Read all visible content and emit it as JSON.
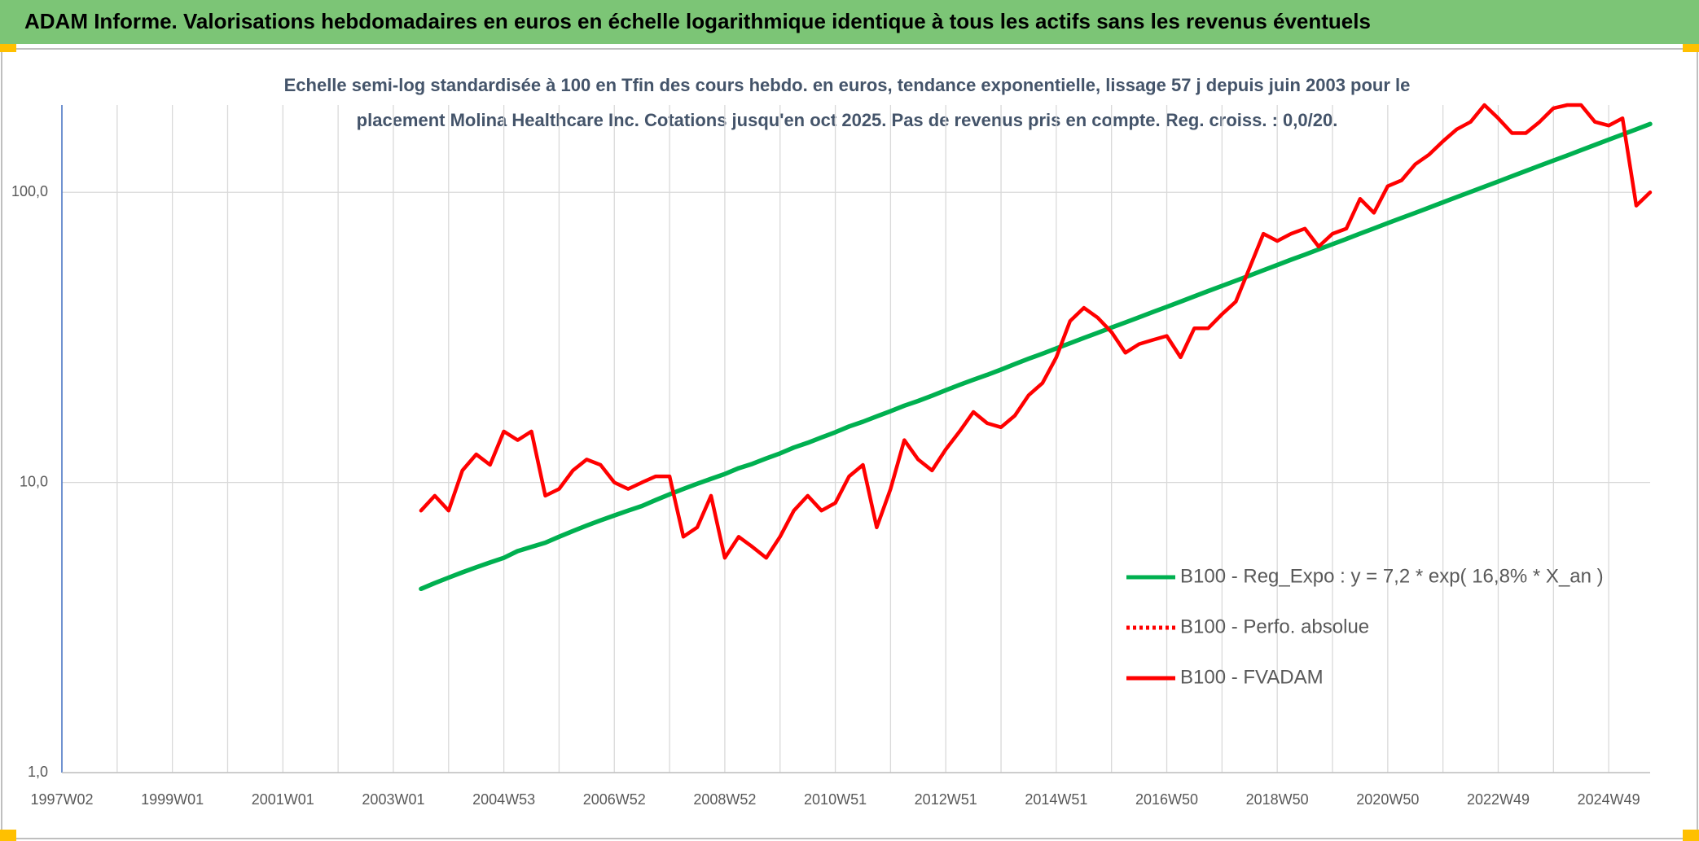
{
  "chart_data": {
    "type": "line",
    "title": "ADAM Informe. Valorisations hebdomadaires en euros en échelle logarithmique identique à tous les actifs sans les revenus éventuels",
    "subtitle": [
      "Echelle semi-log standardisée à 100 en Tfin des cours hebdo. en euros, tendance exponentielle, lissage 57 j depuis juin 2003 pour le",
      "placement Molina Healthcare Inc. Cotations jusqu'en oct 2025. Pas de revenus pris en compte. Reg. croiss. : 0,0/20."
    ],
    "categories": [
      "1997W02",
      null,
      null,
      null,
      null,
      null,
      null,
      null,
      "1999W01",
      null,
      null,
      null,
      null,
      null,
      null,
      null,
      "2001W01",
      null,
      null,
      null,
      null,
      null,
      null,
      null,
      "2003W01",
      null,
      null,
      null,
      null,
      null,
      null,
      null,
      "2004W53",
      null,
      null,
      null,
      null,
      null,
      null,
      null,
      "2006W52",
      null,
      null,
      null,
      null,
      null,
      null,
      null,
      "2008W52",
      null,
      null,
      null,
      null,
      null,
      null,
      null,
      "2010W51",
      null,
      null,
      null,
      null,
      null,
      null,
      null,
      "2012W51",
      null,
      null,
      null,
      null,
      null,
      null,
      null,
      "2014W51",
      null,
      null,
      null,
      null,
      null,
      null,
      null,
      "2016W50",
      null,
      null,
      null,
      null,
      null,
      null,
      null,
      "2018W50",
      null,
      null,
      null,
      null,
      null,
      null,
      null,
      "2020W50",
      null,
      null,
      null,
      null,
      null,
      null,
      null,
      "2022W49",
      null,
      null,
      null,
      null,
      null,
      null,
      null,
      "2024W49",
      null,
      null,
      null
    ],
    "series": [
      {
        "name": "B100 - Reg_Expo : y = 7,2 * exp( 16,8% *  X_an )",
        "color": "#00b050",
        "dash": "solid",
        "values": [
          null,
          null,
          null,
          null,
          null,
          null,
          null,
          null,
          null,
          null,
          null,
          null,
          null,
          null,
          null,
          null,
          null,
          null,
          null,
          null,
          null,
          null,
          null,
          null,
          null,
          null,
          4.3,
          4.5,
          4.7,
          4.9,
          5.1,
          5.3,
          5.5,
          5.8,
          6.0,
          6.2,
          6.5,
          6.8,
          7.1,
          7.4,
          7.7,
          8.0,
          8.3,
          8.7,
          9.1,
          9.5,
          9.9,
          10.3,
          10.7,
          11.2,
          11.6,
          12.1,
          12.6,
          13.2,
          13.7,
          14.3,
          14.9,
          15.6,
          16.2,
          16.9,
          17.6,
          18.4,
          19.1,
          19.9,
          20.8,
          21.7,
          22.6,
          23.5,
          24.5,
          25.6,
          26.7,
          27.8,
          29.0,
          30.2,
          31.5,
          32.8,
          34.2,
          35.6,
          37.1,
          38.7,
          40.3,
          42.0,
          43.8,
          45.7,
          47.6,
          49.6,
          51.7,
          53.9,
          56.2,
          58.6,
          61.0,
          63.6,
          66.3,
          69.1,
          72.1,
          75.1,
          78.3,
          81.6,
          85.0,
          88.6,
          92.4,
          96.3,
          100.4,
          104.6,
          109.0,
          113.7,
          118.5,
          123.5,
          128.7,
          134.1,
          139.8,
          145.7,
          151.9,
          158.3,
          165.0,
          172.0
        ]
      },
      {
        "name": "B100 - Perfo. absolue",
        "color": "#ff0000",
        "dash": "dotted",
        "values": [
          null,
          null,
          null,
          null,
          null,
          null,
          null,
          null,
          null,
          null,
          null,
          null,
          null,
          null,
          null,
          null,
          null,
          null,
          null,
          null,
          null,
          null,
          null,
          null,
          null,
          null,
          null,
          null,
          null,
          null,
          null,
          null,
          null,
          null,
          null,
          null,
          null,
          null,
          null,
          null,
          null,
          null,
          null,
          null,
          null,
          null,
          null,
          null,
          null,
          null,
          null,
          null,
          null,
          null,
          null,
          null,
          null,
          null,
          null,
          null,
          null,
          null,
          null,
          null,
          null,
          null,
          null,
          null,
          null,
          null,
          null,
          null,
          null,
          null,
          null,
          null,
          null,
          null,
          null,
          null,
          null,
          null,
          null,
          null,
          null,
          null,
          null,
          null,
          null,
          null,
          null,
          null,
          null,
          null,
          null,
          null,
          null,
          null,
          null,
          null,
          null,
          null,
          null,
          null,
          null,
          null,
          null,
          null,
          null,
          null,
          null,
          null,
          null,
          null,
          null,
          null
        ]
      },
      {
        "name": "B100 - FVADAM",
        "color": "#ff0000",
        "dash": "solid",
        "values": [
          null,
          null,
          null,
          null,
          null,
          null,
          null,
          null,
          null,
          null,
          null,
          null,
          null,
          null,
          null,
          null,
          null,
          null,
          null,
          null,
          null,
          null,
          null,
          null,
          null,
          null,
          8,
          9,
          8,
          11,
          12.5,
          11.5,
          15,
          14,
          15,
          9,
          9.5,
          11,
          12,
          11.5,
          10,
          9.5,
          10,
          10.5,
          10.5,
          6.5,
          7,
          9,
          5.5,
          6.5,
          6,
          5.5,
          6.5,
          8,
          9,
          8,
          8.5,
          10.5,
          11.5,
          7,
          9.5,
          14,
          12,
          11,
          13,
          15,
          17.5,
          16,
          15.5,
          17,
          20,
          22,
          27,
          36,
          40,
          37,
          33,
          28,
          30,
          31,
          32,
          27,
          34,
          34,
          38,
          42,
          55,
          72,
          68,
          72,
          75,
          65,
          72,
          75,
          95,
          85,
          105,
          110,
          125,
          135,
          150,
          165,
          175,
          200,
          180,
          160,
          160,
          175,
          195,
          200,
          200,
          175,
          170,
          180,
          90,
          100
        ]
      }
    ],
    "log_scale": true,
    "ylim": [
      1,
      200
    ],
    "yticks": [
      {
        "value": 1,
        "label": "1,0"
      },
      {
        "value": 10,
        "label": "10,0"
      },
      {
        "value": 100,
        "label": "100,0"
      }
    ],
    "grid": true,
    "legend": "right"
  }
}
